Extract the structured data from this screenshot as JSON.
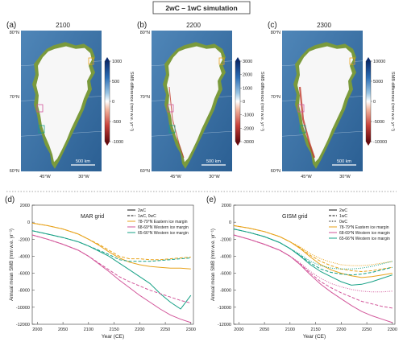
{
  "figure_title": "2wC – 1wC simulation",
  "maps": [
    {
      "label": "(a)",
      "year": "2100",
      "colorbar": {
        "ticks": [
          "1000",
          "500",
          "0",
          "-500",
          "-1000"
        ],
        "label": "SMB difference (mm w.e. yr⁻¹)"
      }
    },
    {
      "label": "(b)",
      "year": "2200",
      "colorbar": {
        "ticks": [
          "3000",
          "2000",
          "1000",
          "0",
          "-1000",
          "-2000",
          "-3000"
        ],
        "label": "SMB difference (mm w.e. yr⁻¹)"
      }
    },
    {
      "label": "(c)",
      "year": "2300",
      "colorbar": {
        "ticks": [
          "10000",
          "5000",
          "0",
          "-5000",
          "-10000"
        ],
        "label": "SMB difference (mm w.e. yr⁻¹)"
      }
    }
  ],
  "map_lat_labels": [
    "80°N",
    "70°N",
    "60°N"
  ],
  "map_lon_labels": [
    "45°W",
    "30°W"
  ],
  "scale_bar": "500 km",
  "colors": {
    "orange": "#e8a21a",
    "pink": "#d2569a",
    "teal": "#16a085",
    "black": "#111111"
  },
  "chart_data": [
    {
      "type": "line",
      "panel_label": "(d)",
      "grid_name": "MAR grid",
      "xlabel": "Year (CE)",
      "ylabel": "Annual mean SMB (mm w.e. yr⁻¹)",
      "xlim": [
        1990,
        2305
      ],
      "ylim": [
        -12000,
        2000
      ],
      "xticks": [
        "2000",
        "2050",
        "2100",
        "2150",
        "2200",
        "2250",
        "2300"
      ],
      "yticks": [
        "2000",
        "0",
        "-2000",
        "-4000",
        "-6000",
        "-8000",
        "-10000",
        "-12000"
      ],
      "legend": [
        {
          "text": "2wC",
          "style": "solid",
          "color": "#111111"
        },
        {
          "text": "1wC, 0wC",
          "style": "dashed",
          "color": "#111111"
        },
        {
          "text": "78-79°N Eastern ice margin",
          "color": "#e8a21a"
        },
        {
          "text": "68-69°N Western ice margin",
          "color": "#d2569a"
        },
        {
          "text": "65-66°N Western ice margin",
          "color": "#16a085"
        }
      ],
      "series": [
        {
          "color": "#e8a21a",
          "style": "solid",
          "x": [
            1990,
            2020,
            2050,
            2080,
            2100,
            2120,
            2140,
            2160,
            2180,
            2200,
            2220,
            2240,
            2260,
            2280,
            2300
          ],
          "y": [
            -100,
            -400,
            -800,
            -1400,
            -2000,
            -2700,
            -3500,
            -4200,
            -4700,
            -5000,
            -5200,
            -5300,
            -5400,
            -5400,
            -5500
          ]
        },
        {
          "color": "#e8a21a",
          "style": "dashed",
          "x": [
            1990,
            2020,
            2050,
            2080,
            2100,
            2120,
            2140,
            2160,
            2180,
            2200,
            2220,
            2240,
            2260,
            2280,
            2300
          ],
          "y": [
            -100,
            -400,
            -800,
            -1400,
            -2000,
            -2600,
            -3300,
            -4000,
            -4300,
            -4300,
            -4400,
            -4400,
            -4300,
            -4200,
            -4100
          ]
        },
        {
          "color": "#16a085",
          "style": "solid",
          "x": [
            1990,
            2020,
            2050,
            2080,
            2100,
            2120,
            2140,
            2160,
            2180,
            2200,
            2220,
            2240,
            2260,
            2280,
            2300
          ],
          "y": [
            -1000,
            -1400,
            -1800,
            -2300,
            -2800,
            -3400,
            -4000,
            -4800,
            -5600,
            -6400,
            -7200,
            -8400,
            -9400,
            -10200,
            -8600
          ]
        },
        {
          "color": "#16a085",
          "style": "dashed",
          "x": [
            1990,
            2020,
            2050,
            2080,
            2100,
            2120,
            2140,
            2160,
            2180,
            2200,
            2220,
            2240,
            2260,
            2280,
            2300
          ],
          "y": [
            -1000,
            -1400,
            -1800,
            -2300,
            -2800,
            -3300,
            -3800,
            -4400,
            -4600,
            -4600,
            -4600,
            -4500,
            -4400,
            -4300,
            -4200
          ]
        },
        {
          "color": "#d2569a",
          "style": "solid",
          "x": [
            1990,
            2020,
            2050,
            2080,
            2100,
            2120,
            2140,
            2160,
            2180,
            2200,
            2220,
            2240,
            2260,
            2280,
            2300
          ],
          "y": [
            -1500,
            -2000,
            -2600,
            -3300,
            -4000,
            -4900,
            -5800,
            -6800,
            -7700,
            -8600,
            -9400,
            -10200,
            -10900,
            -11400,
            -11800
          ]
        },
        {
          "color": "#d2569a",
          "style": "dashed",
          "x": [
            1990,
            2020,
            2050,
            2080,
            2100,
            2120,
            2140,
            2160,
            2180,
            2200,
            2220,
            2240,
            2260,
            2280,
            2300
          ],
          "y": [
            -1500,
            -2000,
            -2600,
            -3300,
            -4000,
            -4800,
            -5600,
            -6400,
            -7000,
            -7500,
            -8000,
            -8400,
            -8800,
            -9200,
            -9500
          ]
        }
      ]
    },
    {
      "type": "line",
      "panel_label": "(e)",
      "grid_name": "GISM grid",
      "xlabel": "Year (CE)",
      "ylabel": "Annual mean SMB (mm w.e. yr⁻¹)",
      "xlim": [
        1990,
        2305
      ],
      "ylim": [
        -12000,
        2000
      ],
      "xticks": [
        "2000",
        "2050",
        "2100",
        "2150",
        "2200",
        "2250",
        "2300"
      ],
      "yticks": [
        "2000",
        "0",
        "-2000",
        "-4000",
        "-6000",
        "-8000",
        "-10000",
        "-12000"
      ],
      "legend": [
        {
          "text": "2wC",
          "style": "solid",
          "color": "#111111"
        },
        {
          "text": "1wC",
          "style": "dashed",
          "color": "#111111"
        },
        {
          "text": "0wC",
          "style": "dotted",
          "color": "#111111"
        },
        {
          "text": "78-79°N Eastern ice margin",
          "color": "#e8a21a"
        },
        {
          "text": "68-69°N Western ice margin",
          "color": "#d2569a"
        },
        {
          "text": "65-66°N Western ice margin",
          "color": "#16a085"
        }
      ],
      "series": [
        {
          "color": "#e8a21a",
          "style": "solid",
          "x": [
            1990,
            2020,
            2050,
            2080,
            2100,
            2120,
            2140,
            2160,
            2180,
            2200,
            2220,
            2240,
            2260,
            2280,
            2300
          ],
          "y": [
            -400,
            -700,
            -1100,
            -1700,
            -2300,
            -3100,
            -4100,
            -5000,
            -5600,
            -6000,
            -6300,
            -6500,
            -6400,
            -6200,
            -6000
          ]
        },
        {
          "color": "#e8a21a",
          "style": "dashed",
          "x": [
            1990,
            2020,
            2050,
            2080,
            2100,
            2120,
            2140,
            2160,
            2180,
            2200,
            2220,
            2240,
            2260,
            2280,
            2300
          ],
          "y": [
            -400,
            -700,
            -1100,
            -1700,
            -2300,
            -3000,
            -3900,
            -4600,
            -5100,
            -5500,
            -5700,
            -5800,
            -5700,
            -5500,
            -5300
          ]
        },
        {
          "color": "#e8a21a",
          "style": "dotted",
          "x": [
            1990,
            2020,
            2050,
            2080,
            2100,
            2120,
            2140,
            2160,
            2180,
            2200,
            2220,
            2240,
            2260,
            2280,
            2300
          ],
          "y": [
            -400,
            -700,
            -1100,
            -1700,
            -2300,
            -2900,
            -3700,
            -4300,
            -4700,
            -5000,
            -5100,
            -5100,
            -5000,
            -4800,
            -4600
          ]
        },
        {
          "color": "#16a085",
          "style": "solid",
          "x": [
            1990,
            2020,
            2050,
            2080,
            2100,
            2120,
            2140,
            2160,
            2180,
            2200,
            2220,
            2240,
            2260,
            2280,
            2300
          ],
          "y": [
            -800,
            -1200,
            -1700,
            -2400,
            -3100,
            -4000,
            -5000,
            -5800,
            -6400,
            -7000,
            -7400,
            -7300,
            -7000,
            -6600,
            -6200
          ]
        },
        {
          "color": "#16a085",
          "style": "dashed",
          "x": [
            1990,
            2020,
            2050,
            2080,
            2100,
            2120,
            2140,
            2160,
            2180,
            2200,
            2220,
            2240,
            2260,
            2280,
            2300
          ],
          "y": [
            -800,
            -1200,
            -1700,
            -2400,
            -3100,
            -3900,
            -4800,
            -5500,
            -5900,
            -6100,
            -6200,
            -6100,
            -5900,
            -5600,
            -5300
          ]
        },
        {
          "color": "#16a085",
          "style": "dotted",
          "x": [
            1990,
            2020,
            2050,
            2080,
            2100,
            2120,
            2140,
            2160,
            2180,
            2200,
            2220,
            2240,
            2260,
            2280,
            2300
          ],
          "y": [
            -800,
            -1200,
            -1700,
            -2400,
            -3100,
            -3800,
            -4600,
            -5100,
            -5400,
            -5500,
            -5500,
            -5400,
            -5200,
            -4900,
            -4600
          ]
        },
        {
          "color": "#d2569a",
          "style": "solid",
          "x": [
            1990,
            2020,
            2050,
            2080,
            2100,
            2120,
            2140,
            2160,
            2180,
            2200,
            2220,
            2240,
            2260,
            2280,
            2300
          ],
          "y": [
            -1500,
            -2000,
            -2600,
            -3300,
            -4000,
            -5000,
            -6200,
            -7300,
            -8200,
            -9000,
            -9800,
            -10500,
            -11000,
            -11400,
            -11800
          ]
        },
        {
          "color": "#d2569a",
          "style": "dashed",
          "x": [
            1990,
            2020,
            2050,
            2080,
            2100,
            2120,
            2140,
            2160,
            2180,
            2200,
            2220,
            2240,
            2260,
            2280,
            2300
          ],
          "y": [
            -1500,
            -2000,
            -2600,
            -3300,
            -4000,
            -4900,
            -6000,
            -7000,
            -7700,
            -8300,
            -8800,
            -9300,
            -9600,
            -9900,
            -10100
          ]
        },
        {
          "color": "#d2569a",
          "style": "dotted",
          "x": [
            1990,
            2020,
            2050,
            2080,
            2100,
            2120,
            2140,
            2160,
            2180,
            2200,
            2220,
            2240,
            2260,
            2280,
            2300
          ],
          "y": [
            -1500,
            -2000,
            -2600,
            -3300,
            -4000,
            -4800,
            -5800,
            -6600,
            -7200,
            -7600,
            -7900,
            -8100,
            -8200,
            -8200,
            -8100
          ]
        }
      ]
    }
  ]
}
